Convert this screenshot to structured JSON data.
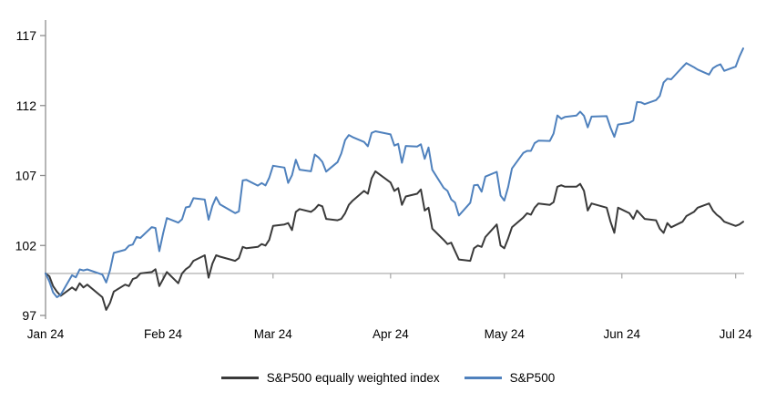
{
  "chart_data": {
    "type": "line",
    "title": "",
    "x_axis": {
      "tick_labels": [
        "Jan 24",
        "Feb 24",
        "Mar 24",
        "Apr 24",
        "May 24",
        "Jun 24",
        "Jul 24"
      ],
      "tick_dates": [
        "2024-01-01",
        "2024-02-01",
        "2024-03-01",
        "2024-04-01",
        "2024-05-01",
        "2024-06-01",
        "2024-07-01"
      ]
    },
    "y_axis": {
      "ticks": [
        97,
        102,
        107,
        112,
        117
      ],
      "range": [
        97,
        117
      ]
    },
    "baseline_value": 100,
    "grid": "off",
    "legend_position": "bottom",
    "dates": [
      "2024-01-01",
      "2024-01-02",
      "2024-01-03",
      "2024-01-04",
      "2024-01-05",
      "2024-01-08",
      "2024-01-09",
      "2024-01-10",
      "2024-01-11",
      "2024-01-12",
      "2024-01-16",
      "2024-01-17",
      "2024-01-18",
      "2024-01-19",
      "2024-01-22",
      "2024-01-23",
      "2024-01-24",
      "2024-01-25",
      "2024-01-26",
      "2024-01-29",
      "2024-01-30",
      "2024-01-31",
      "2024-02-01",
      "2024-02-02",
      "2024-02-05",
      "2024-02-06",
      "2024-02-07",
      "2024-02-08",
      "2024-02-09",
      "2024-02-12",
      "2024-02-13",
      "2024-02-14",
      "2024-02-15",
      "2024-02-16",
      "2024-02-20",
      "2024-02-21",
      "2024-02-22",
      "2024-02-23",
      "2024-02-26",
      "2024-02-27",
      "2024-02-28",
      "2024-02-29",
      "2024-03-01",
      "2024-03-04",
      "2024-03-05",
      "2024-03-06",
      "2024-03-07",
      "2024-03-08",
      "2024-03-11",
      "2024-03-12",
      "2024-03-13",
      "2024-03-14",
      "2024-03-15",
      "2024-03-18",
      "2024-03-19",
      "2024-03-20",
      "2024-03-21",
      "2024-03-22",
      "2024-03-25",
      "2024-03-26",
      "2024-03-27",
      "2024-03-28",
      "2024-04-01",
      "2024-04-02",
      "2024-04-03",
      "2024-04-04",
      "2024-04-05",
      "2024-04-08",
      "2024-04-09",
      "2024-04-10",
      "2024-04-11",
      "2024-04-12",
      "2024-04-15",
      "2024-04-16",
      "2024-04-17",
      "2024-04-18",
      "2024-04-19",
      "2024-04-22",
      "2024-04-23",
      "2024-04-24",
      "2024-04-25",
      "2024-04-26",
      "2024-04-29",
      "2024-04-30",
      "2024-05-01",
      "2024-05-02",
      "2024-05-03",
      "2024-05-06",
      "2024-05-07",
      "2024-05-08",
      "2024-05-09",
      "2024-05-10",
      "2024-05-13",
      "2024-05-14",
      "2024-05-15",
      "2024-05-16",
      "2024-05-17",
      "2024-05-20",
      "2024-05-21",
      "2024-05-22",
      "2024-05-23",
      "2024-05-24",
      "2024-05-28",
      "2024-05-29",
      "2024-05-30",
      "2024-05-31",
      "2024-06-03",
      "2024-06-04",
      "2024-06-05",
      "2024-06-06",
      "2024-06-07",
      "2024-06-10",
      "2024-06-11",
      "2024-06-12",
      "2024-06-13",
      "2024-06-14",
      "2024-06-17",
      "2024-06-18",
      "2024-06-20",
      "2024-06-21",
      "2024-06-24",
      "2024-06-25",
      "2024-06-26",
      "2024-06-27",
      "2024-06-28",
      "2024-07-01",
      "2024-07-02",
      "2024-07-03"
    ],
    "series": [
      {
        "name": "S&P500 equally weighted index",
        "color": "#3A3A3A",
        "values": [
          100,
          99.8,
          99.1,
          98.7,
          98.4,
          99.0,
          98.8,
          99.3,
          99.0,
          99.2,
          98.3,
          97.4,
          97.9,
          98.7,
          99.2,
          99.1,
          99.6,
          99.7,
          100.0,
          100.1,
          100.3,
          99.1,
          99.6,
          100.1,
          99.3,
          100.0,
          100.3,
          100.5,
          100.9,
          101.3,
          99.7,
          100.7,
          101.3,
          101.2,
          100.9,
          101.1,
          101.9,
          101.8,
          101.9,
          102.1,
          102.0,
          102.4,
          103.4,
          103.5,
          103.6,
          103.1,
          104.4,
          104.6,
          104.4,
          104.6,
          104.9,
          104.8,
          103.9,
          103.8,
          103.9,
          104.3,
          104.9,
          105.2,
          105.9,
          105.7,
          106.8,
          107.3,
          106.5,
          105.9,
          106.1,
          104.9,
          105.5,
          105.7,
          106.0,
          104.5,
          104.7,
          103.2,
          102.4,
          102.1,
          102.2,
          101.6,
          101.0,
          100.9,
          101.8,
          102.0,
          101.9,
          102.6,
          103.5,
          102.0,
          101.8,
          102.5,
          103.3,
          104.0,
          104.3,
          104.2,
          104.7,
          105.0,
          104.9,
          105.1,
          106.2,
          106.3,
          106.2,
          106.2,
          106.4,
          105.9,
          104.5,
          105.0,
          104.7,
          103.7,
          102.9,
          104.7,
          104.3,
          103.9,
          104.5,
          104.2,
          103.9,
          103.8,
          103.2,
          102.9,
          103.6,
          103.3,
          103.7,
          104.1,
          104.4,
          104.7,
          105.0,
          104.5,
          104.2,
          104.0,
          103.7,
          103.4,
          103.5,
          103.7
        ]
      },
      {
        "name": "S&P500",
        "color": "#4F81BD",
        "values": [
          100,
          99.43,
          98.64,
          98.3,
          98.48,
          99.87,
          99.72,
          100.29,
          100.22,
          100.29,
          99.92,
          99.36,
          100.23,
          101.47,
          101.69,
          101.99,
          102.07,
          102.61,
          102.54,
          103.31,
          103.25,
          101.59,
          102.86,
          103.96,
          103.63,
          103.87,
          104.72,
          104.78,
          105.38,
          105.28,
          103.84,
          104.84,
          105.45,
          104.94,
          104.31,
          104.44,
          106.65,
          106.69,
          106.28,
          106.46,
          106.29,
          106.84,
          107.7,
          107.57,
          106.47,
          107.02,
          108.13,
          107.42,
          107.3,
          108.5,
          108.29,
          107.98,
          107.28,
          107.96,
          108.57,
          109.53,
          109.89,
          109.74,
          109.4,
          109.09,
          110.04,
          110.16,
          109.94,
          109.14,
          109.26,
          107.91,
          109.11,
          109.07,
          109.23,
          108.19,
          109.0,
          107.41,
          106.12,
          105.9,
          105.29,
          105.06,
          104.14,
          105.05,
          106.3,
          106.33,
          105.84,
          106.92,
          107.26,
          105.57,
          105.21,
          106.17,
          107.5,
          108.61,
          108.76,
          108.76,
          109.31,
          109.49,
          109.47,
          110.0,
          111.29,
          111.05,
          111.18,
          111.28,
          111.56,
          111.26,
          110.44,
          111.21,
          111.24,
          110.42,
          109.76,
          110.64,
          110.77,
          110.93,
          112.25,
          112.23,
          112.1,
          112.39,
          112.69,
          113.65,
          113.92,
          113.87,
          114.75,
          115.03,
          114.74,
          114.57,
          114.21,
          114.66,
          114.84,
          114.95,
          114.48,
          114.78,
          115.49,
          116.08
        ]
      }
    ]
  },
  "legend": {
    "items": [
      {
        "label": "S&P500 equally weighted index",
        "color": "#3A3A3A"
      },
      {
        "label": "S&P500",
        "color": "#4F81BD"
      }
    ]
  },
  "colors": {
    "background": "#FFFFFF",
    "axis_line": "#8F8F8F",
    "baseline": "#A6A6A6",
    "tick_text": "#000000"
  }
}
